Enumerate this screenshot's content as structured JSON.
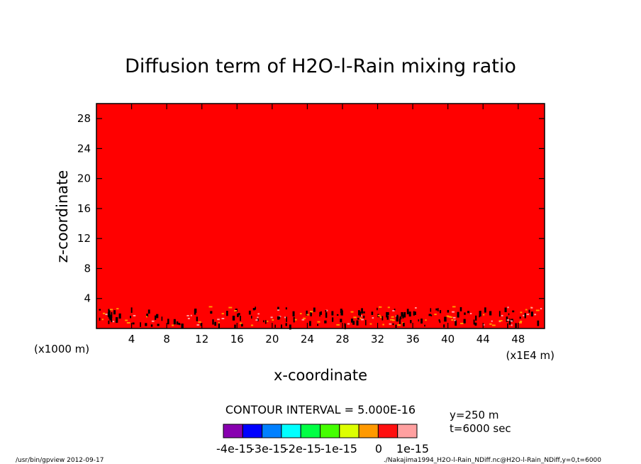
{
  "chart_data": {
    "type": "heatmap",
    "title": "Diffusion term of H2O-l-Rain mixing ratio",
    "xlabel": "x-coordinate",
    "ylabel": "z-coordinate",
    "x_unit_left": "(x1000 m)",
    "x_unit_right": "(x1E4 m)",
    "xlim": [
      0,
      51
    ],
    "ylim": [
      0,
      30
    ],
    "x_ticks": [
      4,
      8,
      12,
      16,
      20,
      24,
      28,
      32,
      36,
      40,
      44,
      48
    ],
    "x_tick_labels": [
      "4",
      "8",
      "12",
      "16",
      "20",
      "24",
      "28",
      "32",
      "36",
      "40",
      "44",
      "48"
    ],
    "y_ticks": [
      4,
      8,
      12,
      16,
      20,
      24,
      28
    ],
    "y_tick_labels": [
      "4",
      "8",
      "12",
      "16",
      "20",
      "24",
      "28"
    ],
    "field_fill_color": "#ff0000",
    "field_value_range": [
      -5e-16,
      0
    ],
    "noise_band_z": [
      0.5,
      3.0
    ],
    "contour_interval_text": "CONTOUR INTERVAL = 5.000E-16",
    "colorbar": {
      "colors": [
        "#8800b0",
        "#0000ff",
        "#0080ff",
        "#00ffff",
        "#00ff44",
        "#44ff00",
        "#ddff00",
        "#ff9900",
        "#ff1010",
        "#ffa0a0"
      ],
      "labels": [
        "-4e-15",
        "-3e-15",
        "-2e-15",
        "-1e-15",
        "0",
        "1e-15"
      ]
    },
    "info_y": "y=250 m",
    "info_t": "t=6000 sec",
    "footer_left": "/usr/bin/gpview  2012-09-17",
    "footer_right": "./Nakajima1994_H2O-l-Rain_NDiff.nc@H2O-l-Rain_NDiff,y=0,t=6000"
  }
}
